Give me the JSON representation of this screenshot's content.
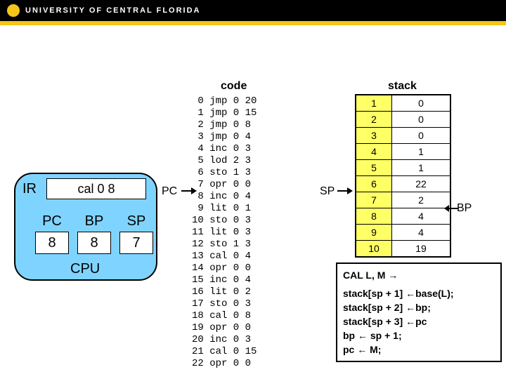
{
  "header": {
    "university": "UNIVERSITY OF CENTRAL FLORIDA"
  },
  "cpu": {
    "ir_label": "IR",
    "ir_value": "cal 0 8",
    "pc_label": "PC",
    "pc_value": "8",
    "bp_label": "BP",
    "bp_value": "8",
    "sp_label": "SP",
    "sp_value": "7",
    "cpu_label": "CPU"
  },
  "code": {
    "title": "code",
    "pc_pointer_label": "PC",
    "pc_index": 8,
    "rows": [
      [
        0,
        "jmp",
        0,
        20
      ],
      [
        1,
        "jmp",
        0,
        15
      ],
      [
        2,
        "jmp",
        0,
        8
      ],
      [
        3,
        "jmp",
        0,
        4
      ],
      [
        4,
        "inc",
        0,
        3
      ],
      [
        5,
        "lod",
        2,
        3
      ],
      [
        6,
        "sto",
        1,
        3
      ],
      [
        7,
        "opr",
        0,
        0
      ],
      [
        8,
        "inc",
        0,
        4
      ],
      [
        9,
        "lit",
        0,
        1
      ],
      [
        10,
        "sto",
        0,
        3
      ],
      [
        11,
        "lit",
        0,
        3
      ],
      [
        12,
        "sto",
        1,
        3
      ],
      [
        13,
        "cal",
        0,
        4
      ],
      [
        14,
        "opr",
        0,
        0
      ],
      [
        15,
        "inc",
        0,
        4
      ],
      [
        16,
        "lit",
        0,
        2
      ],
      [
        17,
        "sto",
        0,
        3
      ],
      [
        18,
        "cal",
        0,
        8
      ],
      [
        19,
        "opr",
        0,
        0
      ],
      [
        20,
        "inc",
        0,
        3
      ],
      [
        21,
        "cal",
        0,
        15
      ],
      [
        22,
        "opr",
        0,
        0
      ]
    ]
  },
  "stack": {
    "title": "stack",
    "sp_pointer_label": "SP",
    "bp_pointer_label": "BP",
    "sp_index": 7,
    "bp_index": 8,
    "rows": [
      [
        1,
        0
      ],
      [
        2,
        0
      ],
      [
        3,
        0
      ],
      [
        4,
        1
      ],
      [
        5,
        1
      ],
      [
        6,
        22
      ],
      [
        7,
        2
      ],
      [
        8,
        4
      ],
      [
        9,
        4
      ],
      [
        10,
        19
      ]
    ]
  },
  "pseudo": {
    "header": "CAL   L, M →",
    "lines": [
      "stack[sp + 1] ←base(L);",
      "stack[sp + 2] ←bp;",
      "stack[sp + 3] ←pc",
      "bp ← sp + 1;",
      "pc ← M;"
    ]
  },
  "colors": {
    "gold": "#f5c518",
    "cpu_fill": "#7fd4ff",
    "stack_index_fill": "#ffff66"
  }
}
